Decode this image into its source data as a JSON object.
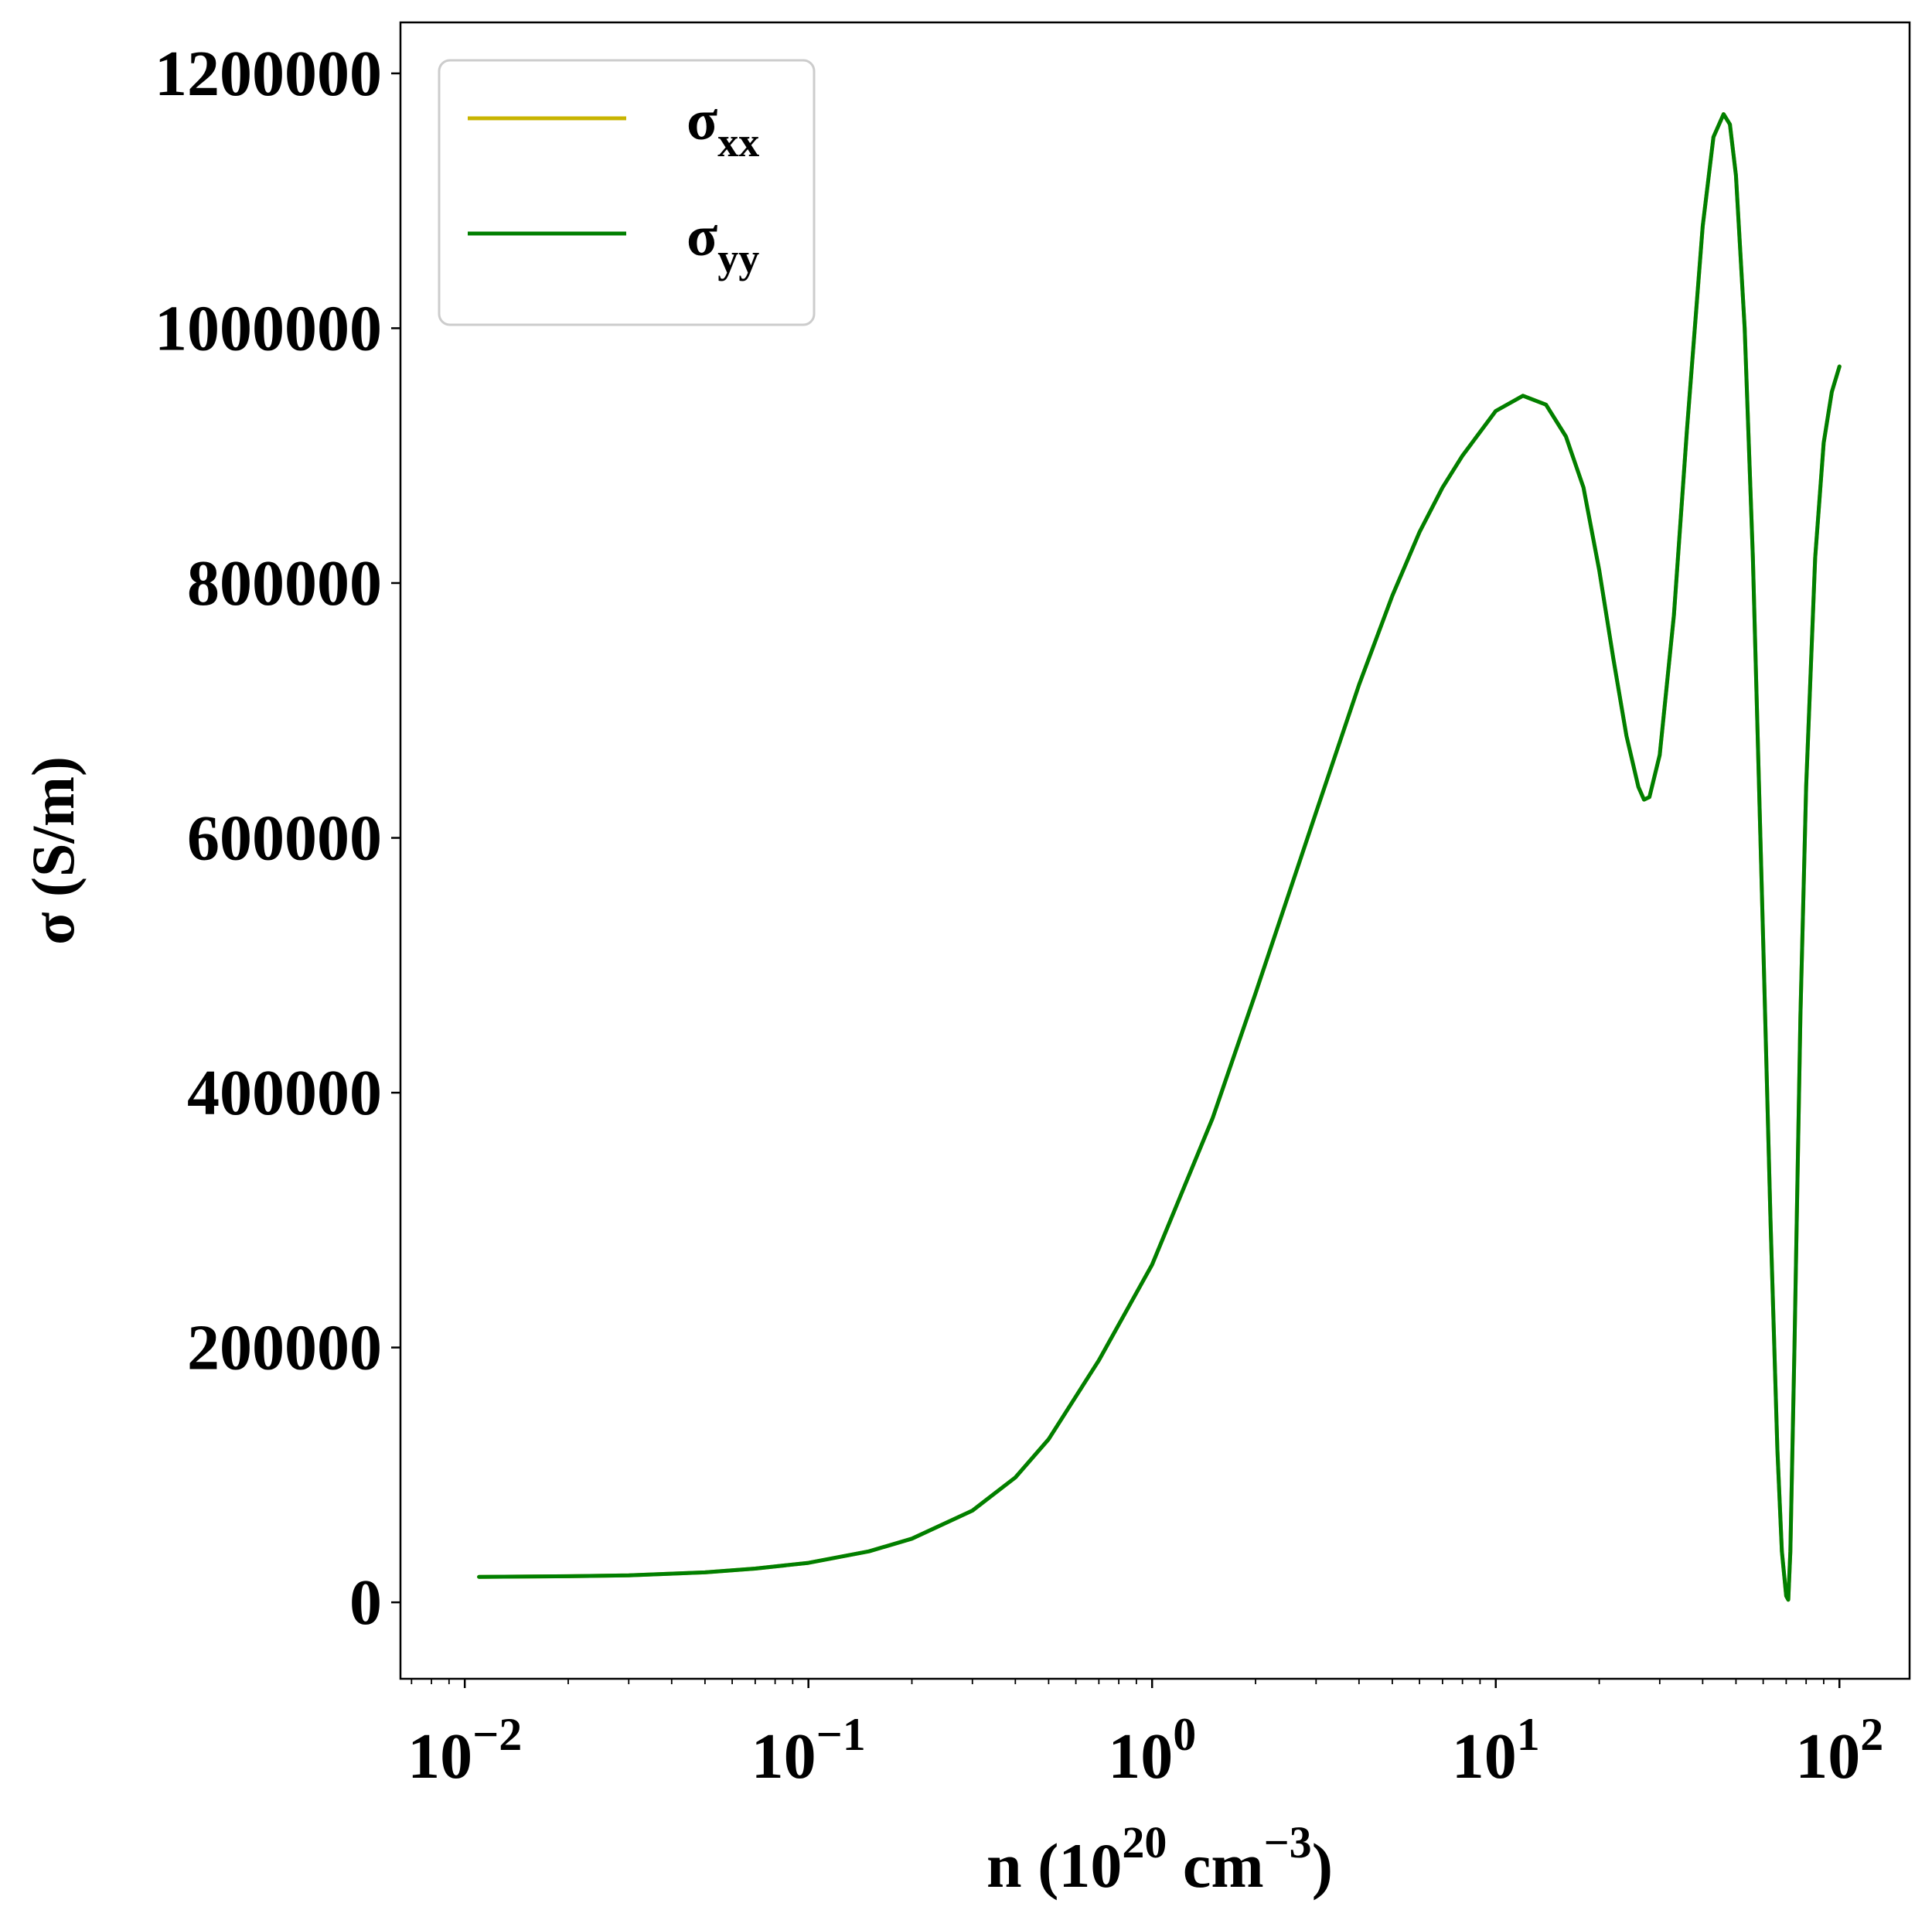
{
  "chart_data": {
    "type": "line",
    "title": "",
    "xlabel": {
      "base": "n (10",
      "exp1": "20",
      "mid": " cm",
      "exp2": "−3",
      "end": ")"
    },
    "ylabel": "σ (S/m)",
    "xscale": "log",
    "xlim": [
      0.0065,
      160
    ],
    "ylim": [
      -60000,
      1240000
    ],
    "grid": false,
    "legend_position": "top-left",
    "x_ticks": [
      {
        "value": 0.01,
        "base": "10",
        "exp": "−2"
      },
      {
        "value": 0.1,
        "base": "10",
        "exp": "−1"
      },
      {
        "value": 1,
        "base": "10",
        "exp": "0"
      },
      {
        "value": 10,
        "base": "10",
        "exp": "1"
      },
      {
        "value": 100,
        "base": "10",
        "exp": "2"
      }
    ],
    "y_ticks": [
      {
        "value": 0,
        "label": "0"
      },
      {
        "value": 200000,
        "label": "200000"
      },
      {
        "value": 400000,
        "label": "400000"
      },
      {
        "value": 600000,
        "label": "600000"
      },
      {
        "value": 800000,
        "label": "800000"
      },
      {
        "value": 1000000,
        "label": "1000000"
      },
      {
        "value": 1200000,
        "label": "1200000"
      }
    ],
    "x": [
      0.011,
      0.02,
      0.03,
      0.05,
      0.07,
      0.1,
      0.15,
      0.2,
      0.3,
      0.4,
      0.5,
      0.7,
      1.0,
      1.5,
      2.0,
      3.0,
      4.0,
      5.0,
      6.0,
      7.0,
      8.0,
      10.0,
      12.0,
      14.0,
      16.0,
      18.0,
      20.0,
      22.0,
      24.0,
      26.0,
      27.0,
      28.0,
      30.0,
      33.0,
      36.0,
      40.0,
      43.0,
      46.0,
      48.0,
      50.0,
      53.0,
      56.0,
      60.0,
      63.0,
      66.0,
      68.0,
      70.0,
      71.0,
      72.0,
      74.0,
      77.0,
      80.0,
      85.0,
      90.0,
      95.0,
      100.0
    ],
    "series": [
      {
        "name": "σ",
        "sub": "xx",
        "color": "#c8b400",
        "values": [
          20000,
          20500,
          21200,
          23500,
          26500,
          31000,
          40000,
          50000,
          72000,
          98000,
          128000,
          190000,
          265000,
          380000,
          478000,
          620000,
          720000,
          790000,
          840000,
          875000,
          900000,
          935000,
          947000,
          940000,
          915000,
          875000,
          810000,
          740000,
          680000,
          640000,
          630000,
          632000,
          665000,
          775000,
          920000,
          1080000,
          1150000,
          1168000,
          1160000,
          1120000,
          1000000,
          820000,
          520000,
          300000,
          120000,
          40000,
          5000,
          2000,
          40000,
          200000,
          460000,
          640000,
          820000,
          910000,
          950000,
          970000
        ]
      },
      {
        "name": "σ",
        "sub": "yy",
        "color": "#007f00",
        "values": [
          20000,
          20500,
          21200,
          23500,
          26500,
          31000,
          40000,
          50000,
          72000,
          98000,
          128000,
          190000,
          265000,
          380000,
          478000,
          620000,
          720000,
          790000,
          840000,
          875000,
          900000,
          935000,
          947000,
          940000,
          915000,
          875000,
          810000,
          740000,
          680000,
          640000,
          630000,
          632000,
          665000,
          775000,
          920000,
          1080000,
          1150000,
          1168000,
          1160000,
          1120000,
          1000000,
          820000,
          520000,
          300000,
          120000,
          40000,
          5000,
          2000,
          40000,
          200000,
          460000,
          640000,
          820000,
          910000,
          950000,
          970000
        ]
      }
    ]
  }
}
